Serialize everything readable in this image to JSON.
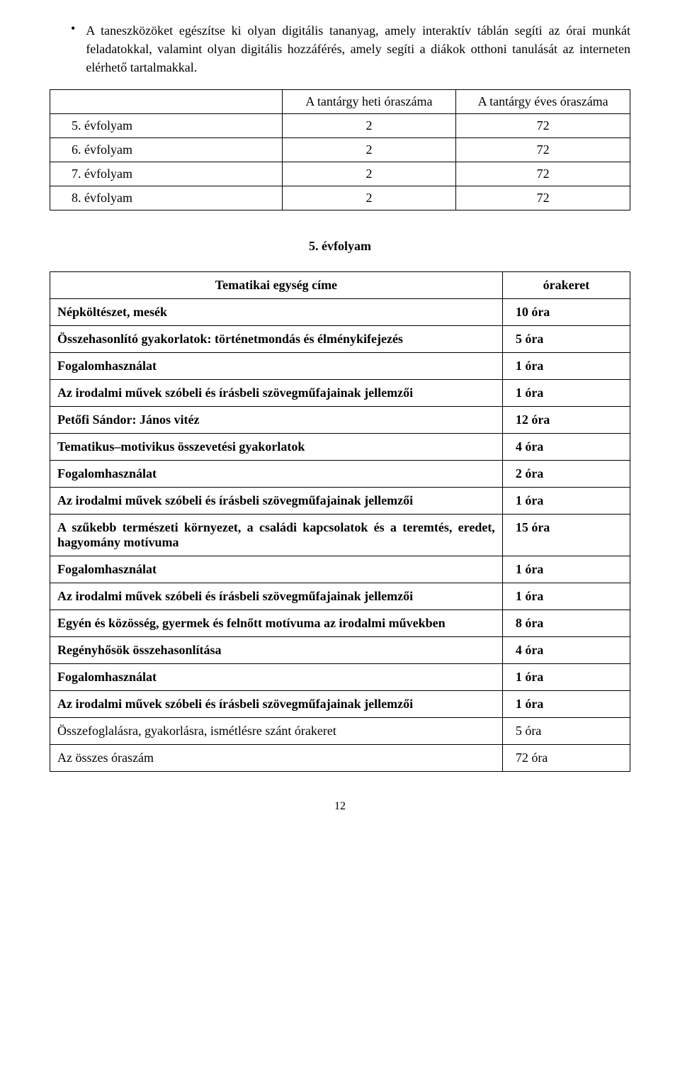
{
  "bullet": {
    "text": "A taneszközöket egészítse ki olyan digitális tananyag, amely interaktív táblán segíti az órai munkát feladatokkal, valamint olyan digitális hozzáférés, amely segíti a diákok otthoni tanulását az interneten elérhető tartalmakkal."
  },
  "table1": {
    "header": {
      "blank": "",
      "weekly": "A tantárgy heti óraszáma",
      "yearly": "A tantárgy éves óraszáma"
    },
    "rows": [
      {
        "label": "5. évfolyam",
        "weekly": "2",
        "yearly": "72"
      },
      {
        "label": "6. évfolyam",
        "weekly": "2",
        "yearly": "72"
      },
      {
        "label": "7. évfolyam",
        "weekly": "2",
        "yearly": "72"
      },
      {
        "label": "8. évfolyam",
        "weekly": "2",
        "yearly": "72"
      }
    ]
  },
  "sectionHeading": "5. évfolyam",
  "table2": {
    "header": {
      "title": "Tematikai egység címe",
      "hours": "órakeret"
    },
    "rows": [
      {
        "title": "Népköltészet, mesék",
        "hours": "10 óra",
        "bold": true
      },
      {
        "title": "Összehasonlító gyakorlatok: történetmondás és élménykifejezés",
        "hours": "5 óra",
        "bold": true
      },
      {
        "title": "Fogalomhasználat",
        "hours": "1 óra",
        "bold": true
      },
      {
        "title": "Az irodalmi művek szóbeli és írásbeli szövegműfajainak jellemzői",
        "hours": "1 óra",
        "bold": true
      },
      {
        "title": "Petőfi Sándor: János vitéz",
        "hours": "12 óra",
        "bold": true
      },
      {
        "title": "Tematikus–motivikus összevetési gyakorlatok",
        "hours": "4 óra",
        "bold": true
      },
      {
        "title": "Fogalomhasználat",
        "hours": "2 óra",
        "bold": true
      },
      {
        "title": "Az irodalmi művek szóbeli és írásbeli szövegműfajainak jellemzői",
        "hours": "1 óra",
        "bold": true
      },
      {
        "title": "A szűkebb természeti környezet, a családi kapcsolatok és a teremtés, eredet, hagyomány motívuma",
        "hours": "15 óra",
        "bold": true
      },
      {
        "title": "Fogalomhasználat",
        "hours": "1 óra",
        "bold": true
      },
      {
        "title": "Az irodalmi művek szóbeli és írásbeli szövegműfajainak jellemzői",
        "hours": "1 óra",
        "bold": true
      },
      {
        "title": "Egyén és közösség, gyermek és felnőtt motívuma az irodalmi művekben",
        "hours": "8 óra",
        "bold": true
      },
      {
        "title": "Regényhősök összehasonlítása",
        "hours": "4 óra",
        "bold": true
      },
      {
        "title": "Fogalomhasználat",
        "hours": "1 óra",
        "bold": true
      },
      {
        "title": "Az irodalmi művek szóbeli és írásbeli szövegműfajainak jellemzői",
        "hours": "1 óra",
        "bold": true
      },
      {
        "title": "Összefoglalásra, gyakorlásra, ismétlésre szánt órakeret",
        "hours": "5 óra",
        "bold": false
      },
      {
        "title": "Az összes óraszám",
        "hours": "72 óra",
        "bold": false
      }
    ]
  },
  "pageNumber": "12"
}
